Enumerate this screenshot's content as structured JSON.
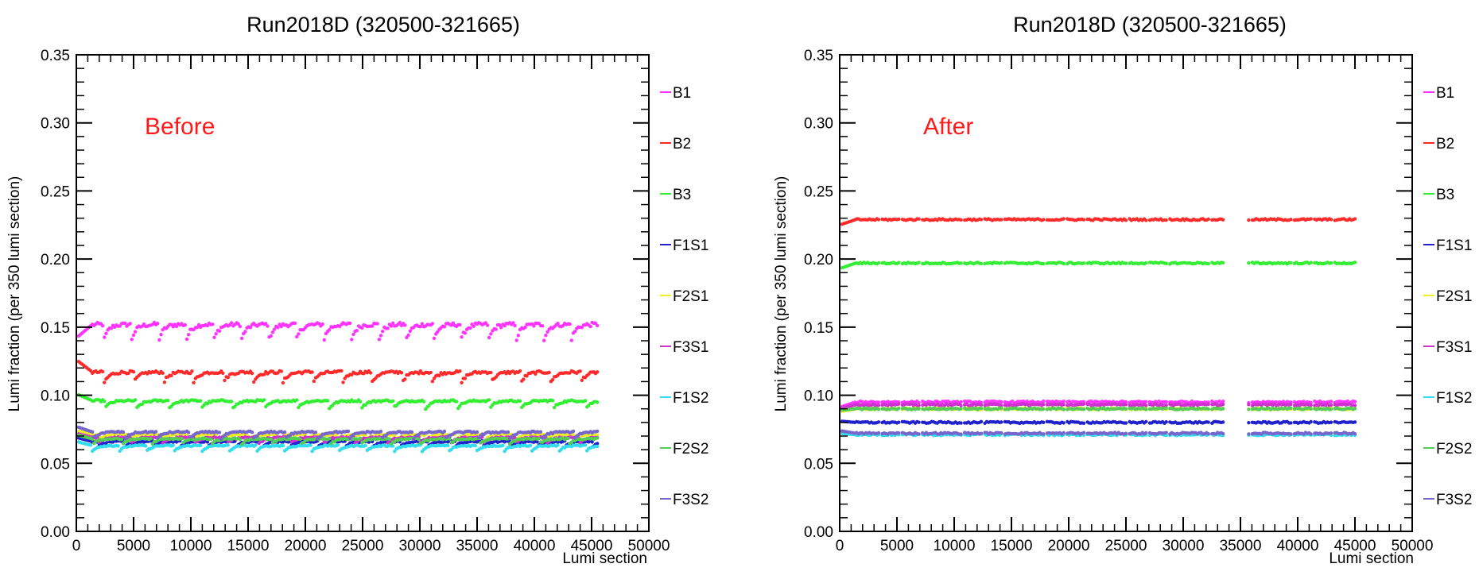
{
  "chart_data": [
    {
      "type": "scatter",
      "title": "Run2018D (320500-321665)",
      "xlabel": "Lumi section",
      "ylabel": "Lumi fraction (per 350 lumi section)",
      "xlim": [
        0,
        50000
      ],
      "ylim": [
        0,
        0.35
      ],
      "x_ticks": [
        0,
        5000,
        10000,
        15000,
        20000,
        25000,
        30000,
        35000,
        40000,
        45000,
        50000
      ],
      "y_ticks": [
        "0.00",
        "0.05",
        "0.10",
        "0.15",
        "0.20",
        "0.25",
        "0.30",
        "0.35"
      ],
      "annotation": "Before",
      "annotation_color": "#ff1a1a",
      "legend_position": "right",
      "x_range_data": [
        0,
        45500
      ],
      "series": [
        {
          "name": "B1",
          "color": "#ff33ff",
          "level": 0.152,
          "start": 0.142,
          "dip": 0.012
        },
        {
          "name": "B2",
          "color": "#ff2b2b",
          "level": 0.117,
          "start": 0.126,
          "dip": 0.008
        },
        {
          "name": "B3",
          "color": "#33ee33",
          "level": 0.096,
          "start": 0.101,
          "dip": 0.006
        },
        {
          "name": "F1S1",
          "color": "#2222cc",
          "level": 0.066,
          "start": 0.069,
          "dip": 0.004
        },
        {
          "name": "F2S1",
          "color": "#eeee22",
          "level": 0.071,
          "start": 0.074,
          "dip": 0.004
        },
        {
          "name": "F3S1",
          "color": "#cc33cc",
          "level": 0.069,
          "start": 0.072,
          "dip": 0.004
        },
        {
          "name": "F1S2",
          "color": "#33ddee",
          "level": 0.063,
          "start": 0.066,
          "dip": 0.004
        },
        {
          "name": "F2S2",
          "color": "#55cc55",
          "level": 0.068,
          "start": 0.071,
          "dip": 0.004
        },
        {
          "name": "F3S2",
          "color": "#7766cc",
          "level": 0.073,
          "start": 0.077,
          "dip": 0.005
        }
      ]
    },
    {
      "type": "scatter",
      "title": "Run2018D (320500-321665)",
      "xlabel": "Lumi section",
      "ylabel": "Lumi fraction (per 350 lumi section)",
      "xlim": [
        0,
        50000
      ],
      "ylim": [
        0,
        0.35
      ],
      "x_ticks": [
        0,
        5000,
        10000,
        15000,
        20000,
        25000,
        30000,
        35000,
        40000,
        45000,
        50000
      ],
      "y_ticks": [
        "0.00",
        "0.05",
        "0.10",
        "0.15",
        "0.20",
        "0.25",
        "0.30",
        "0.35"
      ],
      "annotation": "After",
      "annotation_color": "#ff1a1a",
      "legend_position": "right",
      "x_range_data": [
        0,
        45000
      ],
      "gap": [
        33600,
        35700
      ],
      "series": [
        {
          "name": "B1",
          "color": "#ff33ff",
          "level": 0.095,
          "start": 0.091
        },
        {
          "name": "B2",
          "color": "#ff2b2b",
          "level": 0.229,
          "start": 0.225
        },
        {
          "name": "B3",
          "color": "#33ee33",
          "level": 0.197,
          "start": 0.193
        },
        {
          "name": "F1S1",
          "color": "#2222cc",
          "level": 0.08,
          "start": 0.081
        },
        {
          "name": "F2S1",
          "color": "#eeee22",
          "level": 0.09,
          "start": 0.088
        },
        {
          "name": "F3S1",
          "color": "#cc33cc",
          "level": 0.093,
          "start": 0.09
        },
        {
          "name": "F1S2",
          "color": "#33ddee",
          "level": 0.071,
          "start": 0.072
        },
        {
          "name": "F2S2",
          "color": "#55cc55",
          "level": 0.09,
          "start": 0.089
        },
        {
          "name": "F3S2",
          "color": "#7766cc",
          "level": 0.072,
          "start": 0.074
        }
      ]
    }
  ]
}
